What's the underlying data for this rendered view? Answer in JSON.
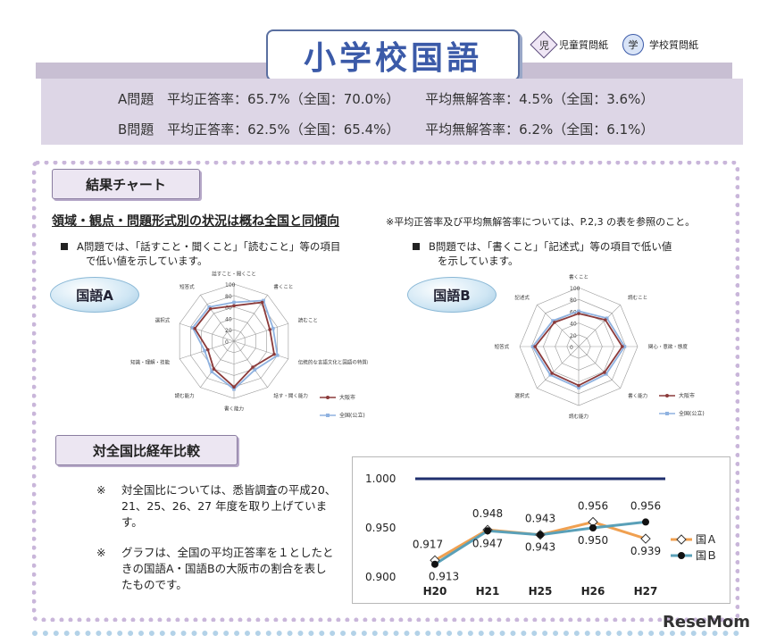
{
  "header": {
    "title": "小学校国語",
    "icon_child_glyph": "児",
    "icon_child_label": "児童質問紙",
    "icon_school_glyph": "学",
    "icon_school_label": "学校質問紙"
  },
  "stats": {
    "a_label": "A問題",
    "a_correct": "平均正答率：65.7%（全国：70.0%）",
    "a_noanswer": "平均無解答率：4.5%（全国：3.6%）",
    "b_label": "B問題",
    "b_correct": "平均正答率：62.5%（全国：65.4%）",
    "b_noanswer": "平均無解答率：6.2%（全国：6.1%）"
  },
  "results": {
    "tab": "結果チャート",
    "heading": "領域・観点・問題形式別の状況は概ね全国と同傾向",
    "note": "※平均正答率及び平均無解答率については、P.2,3 の表を参照のこと。",
    "bullet_a_line1": "A問題では、「話すこと・聞くこと」「読むこと」等の項目",
    "bullet_a_line2": "で低い値を示しています。",
    "bullet_b_line1": "B問題では、「書くこと」「記述式」等の項目で低い値",
    "bullet_b_line2": "を示しています。",
    "pill_a": "国語A",
    "pill_b": "国語B"
  },
  "radar_a": {
    "axes": [
      "話すこと・聞くこと",
      "書くこと",
      "読むこと",
      "伝統的な言語文化と国語の特質に関する事項",
      "話す・聞く能力",
      "書く能力",
      "読む能力",
      "知識・理解・技能",
      "選択式",
      "短答式"
    ],
    "ticks": [
      "100",
      "80",
      "60",
      "40",
      "20",
      "0"
    ],
    "osaka": [
      62,
      84,
      66,
      74,
      56,
      80,
      60,
      48,
      72,
      70
    ],
    "national": [
      68,
      88,
      72,
      80,
      62,
      84,
      66,
      54,
      76,
      74
    ],
    "legend_osaka": "大阪市",
    "legend_national": "全国(公立)",
    "color_osaka": "#8b3a3a",
    "color_national": "#8fb2e0"
  },
  "radar_b": {
    "axes": [
      "書くこと",
      "読むこと",
      "関心・意欲・態度",
      "書く能力",
      "読む能力",
      "選択式",
      "短答式",
      "記述式"
    ],
    "ticks": [
      "100",
      "80",
      "60",
      "40",
      "20",
      "0"
    ],
    "osaka": [
      56,
      64,
      74,
      62,
      66,
      64,
      74,
      58
    ],
    "national": [
      60,
      68,
      78,
      66,
      70,
      68,
      78,
      62
    ],
    "legend_osaka": "大阪市",
    "legend_national": "全国(公立)",
    "color_osaka": "#8b3a3a",
    "color_national": "#8fb2e0"
  },
  "compare": {
    "tab": "対全国比経年比較",
    "note1_mark": "※",
    "note1": "対全国比については、悉皆調査の平成20、21、25、26、27 年度を取り上げています。",
    "note2_mark": "※",
    "note2": "グラフは、全国の平均正答率を１としたときの国語A・国語Bの大阪市の割合を表したものです。"
  },
  "chart_data": {
    "type": "line",
    "categories": [
      "H20",
      "H21",
      "H25",
      "H26",
      "H27"
    ],
    "series": [
      {
        "name": "国Ａ",
        "values": [
          0.917,
          0.948,
          0.943,
          0.956,
          0.939
        ],
        "color": "#f0a050"
      },
      {
        "name": "国Ｂ",
        "values": [
          0.913,
          0.947,
          0.943,
          0.95,
          0.956
        ],
        "color": "#5aa0b8"
      }
    ],
    "reference_line": 1.0,
    "reference_color": "#1f2f6e",
    "ylim": [
      0.9,
      1.0
    ],
    "yticks": [
      "1.000",
      "0.950",
      "0.900"
    ],
    "labels_a": [
      "0.917",
      "0.948",
      "0.943",
      "0.956",
      "0.939"
    ],
    "labels_b": [
      "0.913",
      "0.947",
      "0.943",
      "0.950",
      "0.956"
    ]
  },
  "footer": {
    "logo": "ReseMom"
  }
}
